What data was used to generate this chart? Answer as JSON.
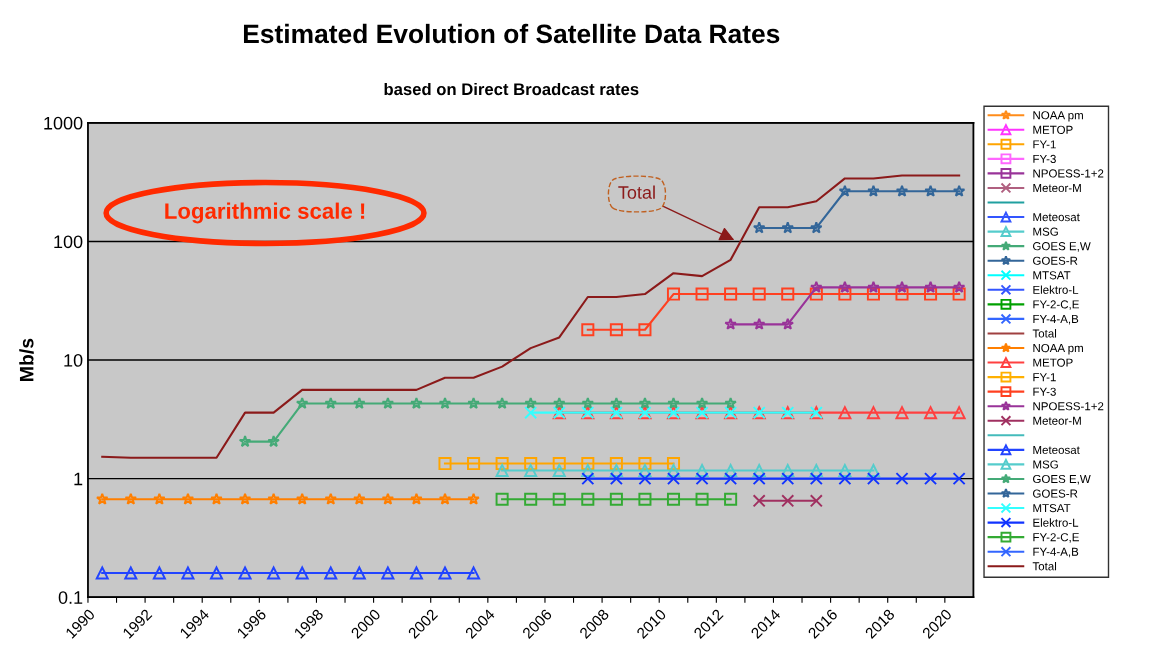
{
  "chart_data": {
    "type": "line",
    "title": "Estimated Evolution of Satellite Data Rates",
    "subtitle": "based on Direct Broadcast rates",
    "ylabel": "Mb/s",
    "log": "y",
    "grid": "y",
    "legend": "right",
    "xlim": [
      1990,
      2021
    ],
    "ylim": [
      0.1,
      1000
    ],
    "xticks": [
      1990,
      {
        "value": 1991,
        "label": null
      },
      1992,
      {
        "value": 1993,
        "label": null
      },
      1994,
      {
        "value": 1995,
        "label": null
      },
      1996,
      {
        "value": 1997,
        "label": null
      },
      1998,
      {
        "value": 1999,
        "label": null
      },
      2000,
      {
        "value": 2001,
        "label": null
      },
      2002,
      {
        "value": 2003,
        "label": null
      },
      2004,
      {
        "value": 2005,
        "label": null
      },
      2006,
      {
        "value": 2007,
        "label": null
      },
      2008,
      {
        "value": 2009,
        "label": null
      },
      2010,
      {
        "value": 2011,
        "label": null
      },
      2012,
      {
        "value": 2013,
        "label": null
      },
      2014,
      {
        "value": 2015,
        "label": null
      },
      2016,
      {
        "value": 2017,
        "label": null
      },
      2018,
      {
        "value": 2019,
        "label": null
      },
      2020
    ],
    "yticks": [
      0.1,
      1,
      10,
      100,
      1000
    ],
    "annotations": [
      "Logarithmic scale !",
      "Total"
    ],
    "series": [
      {
        "name": "NOAA pm",
        "color": "#ff8c1a",
        "marker": "star"
      },
      {
        "name": "METOP",
        "color": "#ff33ff",
        "marker": "triangle"
      },
      {
        "name": "FY-1",
        "color": "#ffa500",
        "marker": "square",
        "x": [
          2002.5,
          2003.5,
          2004.5,
          2005.5,
          2006.5,
          2007.5,
          2008.5,
          2009.5,
          2010.5
        ],
        "values": [
          1.34,
          1.34,
          1.34,
          1.34,
          1.34,
          1.34,
          1.34,
          1.34,
          1.34
        ]
      },
      {
        "name": "FY-3",
        "color": "#ff66ff",
        "marker": "square"
      },
      {
        "name": "NPOESS-1+2",
        "color": "#993399",
        "marker": "square"
      },
      {
        "name": "Meteor-M",
        "color": "#b06080",
        "marker": "cross"
      },
      {
        "color": "#20a0a0",
        "marker": "none"
      },
      {
        "name": "Meteosat",
        "color": "#3355ff",
        "marker": "triangle"
      },
      {
        "name": "MSG",
        "color": "#55cccc",
        "marker": "triangle"
      },
      {
        "name": "GOES E,W",
        "color": "#44aa77",
        "marker": "star"
      },
      {
        "name": "GOES-R",
        "color": "#336699",
        "marker": "star"
      },
      {
        "name": "MTSAT",
        "color": "#00ffff",
        "marker": "cross"
      },
      {
        "name": "Elektro-L",
        "color": "#3355ff",
        "marker": "cross"
      },
      {
        "name": "FY-2-C,E",
        "color": "#00a000",
        "marker": "square"
      },
      {
        "name": "FY-4-A,B",
        "color": "#3366ff",
        "marker": "cross"
      },
      {
        "name": "Total",
        "color": "#a04040",
        "marker": "none"
      },
      {
        "name": "NOAA pm",
        "color": "#ff7f00",
        "marker": "star",
        "x": [
          1990.5,
          1991.5,
          1992.5,
          1993.5,
          1994.5,
          1995.5,
          1996.5,
          1997.5,
          1998.5,
          1999.5,
          2000.5,
          2001.5,
          2002.5,
          2003.5
        ],
        "values": [
          0.67,
          0.67,
          0.67,
          0.67,
          0.67,
          0.67,
          0.67,
          0.67,
          0.67,
          0.67,
          0.67,
          0.67,
          0.67,
          0.67
        ]
      },
      {
        "name": "METOP",
        "color": "#ff4040",
        "marker": "triangle",
        "x": [
          2006.5,
          2007.5,
          2008.5,
          2009.5,
          2010.5,
          2011.5,
          2012.5,
          2013.5,
          2014.5,
          2015.5,
          2016.5,
          2017.5,
          2018.5,
          2019.5,
          2020.5
        ],
        "values": [
          3.6,
          3.6,
          3.6,
          3.6,
          3.6,
          3.6,
          3.6,
          3.6,
          3.6,
          3.6,
          3.6,
          3.6,
          3.6,
          3.6,
          3.6
        ]
      },
      {
        "name": "FY-1",
        "color": "#ffb000",
        "marker": "square"
      },
      {
        "name": "FY-3",
        "color": "#ff4020",
        "marker": "square",
        "x": [
          2007.5,
          2008.5,
          2009.5,
          2010.5,
          2011.5,
          2012.5,
          2013.5,
          2014.5,
          2015.5,
          2016.5,
          2017.5,
          2018.5,
          2019.5,
          2020.5
        ],
        "values": [
          18,
          18,
          18,
          36,
          36,
          36,
          36,
          36,
          36,
          36,
          36,
          36,
          36,
          36
        ]
      },
      {
        "name": "NPOESS-1+2",
        "color": "#993399",
        "marker": "star",
        "x": [
          2012.5,
          2013.5,
          2014.5,
          2015.5,
          2016.5,
          2017.5,
          2018.5,
          2019.5,
          2020.5
        ],
        "values": [
          20,
          20,
          20,
          41,
          41,
          41,
          41,
          41,
          41
        ]
      },
      {
        "name": "Meteor-M",
        "color": "#a03060",
        "marker": "cross",
        "x": [
          2013.5,
          2014.5,
          2015.5
        ],
        "values": [
          0.65,
          0.65,
          0.65
        ]
      },
      {
        "color": "#44bbbb",
        "marker": "none"
      },
      {
        "name": "Meteosat",
        "color": "#2244ff",
        "marker": "triangle",
        "x": [
          1990.5,
          1991.5,
          1992.5,
          1993.5,
          1994.5,
          1995.5,
          1996.5,
          1997.5,
          1998.5,
          1999.5,
          2000.5,
          2001.5,
          2002.5,
          2003.5
        ],
        "values": [
          0.16,
          0.16,
          0.16,
          0.16,
          0.16,
          0.16,
          0.16,
          0.16,
          0.16,
          0.16,
          0.16,
          0.16,
          0.16,
          0.16
        ]
      },
      {
        "name": "MSG",
        "color": "#55cccc",
        "marker": "triangle",
        "x": [
          2004.5,
          2005.5,
          2006.5,
          2007.5,
          2008.5,
          2009.5,
          2010.5,
          2011.5,
          2012.5,
          2013.5,
          2014.5,
          2015.5,
          2016.5,
          2017.5
        ],
        "values": [
          1.17,
          1.17,
          1.17,
          1.17,
          1.17,
          1.17,
          1.17,
          1.17,
          1.17,
          1.17,
          1.17,
          1.17,
          1.17,
          1.17
        ]
      },
      {
        "name": "GOES E,W",
        "color": "#44aa77",
        "marker": "star",
        "x": [
          1995.5,
          1996.5,
          1997.5,
          1998.5,
          1999.5,
          2000.5,
          2001.5,
          2002.5,
          2003.5,
          2004.5,
          2005.5,
          2006.5,
          2007.5,
          2008.5,
          2009.5,
          2010.5,
          2011.5,
          2012.5
        ],
        "values": [
          2.05,
          2.05,
          4.3,
          4.3,
          4.3,
          4.3,
          4.3,
          4.3,
          4.3,
          4.3,
          4.3,
          4.3,
          4.3,
          4.3,
          4.3,
          4.3,
          4.3,
          4.3
        ]
      },
      {
        "name": "GOES-R",
        "color": "#336699",
        "marker": "star",
        "x": [
          2013.5,
          2014.5,
          2015.5,
          2016.5,
          2017.5,
          2018.5,
          2019.5,
          2020.5
        ],
        "values": [
          130,
          130,
          130,
          265,
          265,
          265,
          265,
          265
        ]
      },
      {
        "name": "MTSAT",
        "color": "#33ffff",
        "marker": "cross",
        "x": [
          2005.5,
          2006.5,
          2007.5,
          2008.5,
          2009.5,
          2010.5,
          2011.5,
          2012.5,
          2013.5,
          2014.5,
          2015.5
        ],
        "values": [
          3.6,
          3.6,
          3.6,
          3.6,
          3.6,
          3.6,
          3.6,
          3.6,
          3.6,
          3.6,
          3.6
        ]
      },
      {
        "name": "Elektro-L",
        "color": "#1133ff",
        "marker": "cross",
        "x": [
          2007.5,
          2008.5,
          2009.5,
          2010.5,
          2011.5,
          2012.5,
          2013.5,
          2014.5,
          2015.5,
          2016.5,
          2017.5,
          2018.5,
          2019.5,
          2020.5
        ],
        "values": [
          1,
          1,
          1,
          1,
          1,
          1,
          1,
          1,
          1,
          1,
          1,
          1,
          1,
          1
        ]
      },
      {
        "name": "FY-2-C,E",
        "color": "#33aa33",
        "marker": "square",
        "x": [
          2004.5,
          2005.5,
          2006.5,
          2007.5,
          2008.5,
          2009.5,
          2010.5,
          2011.5,
          2012.5
        ],
        "values": [
          0.67,
          0.67,
          0.67,
          0.67,
          0.67,
          0.67,
          0.67,
          0.67,
          0.67
        ]
      },
      {
        "name": "FY-4-A,B",
        "color": "#3366ff",
        "marker": "cross"
      },
      {
        "name": "Total",
        "color": "#8b1a1a",
        "marker": "none",
        "x": [
          1990.5,
          1991.5,
          1992.5,
          1993.5,
          1994.5,
          1995.5,
          1996.5,
          1997.5,
          1998.5,
          1999.5,
          2000.5,
          2001.5,
          2002.5,
          2003.5,
          2004.5,
          2005.5,
          2006.5,
          2007.5,
          2008.5,
          2009.5,
          2010.5,
          2011.5,
          2012.5,
          2013.5,
          2014.5,
          2015.5,
          2016.5,
          2017.5,
          2018.5,
          2019.5,
          2020.5
        ],
        "values": [
          1.53,
          1.5,
          1.5,
          1.5,
          1.5,
          3.6,
          3.6,
          5.6,
          5.6,
          5.6,
          5.6,
          5.6,
          7.1,
          7.1,
          8.8,
          12.6,
          15.5,
          34,
          34,
          36,
          54,
          51,
          70,
          194,
          194,
          218,
          340,
          340,
          360,
          360,
          360
        ]
      }
    ]
  }
}
